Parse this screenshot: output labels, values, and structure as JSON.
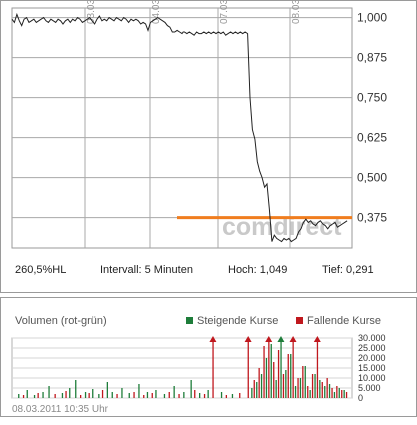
{
  "chart_data": [
    {
      "type": "line",
      "x_ticks": [
        "03.03.",
        "04.03.",
        "07.03.",
        "08.03."
      ],
      "y_ticks": [
        "1,000",
        "0,875",
        "0,750",
        "0,625",
        "0,500",
        "0,375"
      ],
      "ylim": [
        0.28,
        1.03
      ],
      "grid": true,
      "reference_line": {
        "value": 0.375,
        "color": "#f07d1e"
      },
      "watermark": "comdirect",
      "series": [
        {
          "color": "#222222",
          "x": [
            0,
            2,
            4,
            6,
            8,
            10,
            12,
            14,
            16,
            18,
            20,
            22,
            24,
            26,
            28,
            30,
            32,
            34,
            36,
            38,
            40,
            42,
            44,
            46,
            48,
            50,
            52,
            54,
            56,
            58,
            60,
            62,
            64,
            66,
            68,
            70,
            72,
            74,
            76,
            78,
            80,
            82,
            84,
            86,
            88,
            90,
            92,
            94,
            96,
            98,
            100,
            102,
            104,
            106,
            108,
            110,
            112,
            114,
            116,
            118,
            120,
            122,
            124,
            126,
            128,
            130,
            132,
            134,
            136,
            138,
            140,
            141,
            142,
            144,
            146,
            148,
            150,
            152,
            154,
            156,
            158,
            160,
            162,
            164,
            166,
            168,
            170,
            172,
            174,
            176,
            178,
            180,
            182,
            184,
            186,
            188,
            190,
            192,
            194,
            196,
            198,
            200,
            202,
            204,
            206,
            208,
            210,
            212,
            214,
            216,
            218,
            220,
            222,
            224,
            226,
            228,
            230,
            232,
            234,
            236,
            238,
            240,
            242,
            244,
            246,
            248,
            250,
            252,
            254,
            256,
            258,
            260,
            262,
            264,
            266,
            268,
            270,
            272,
            274,
            276
          ],
          "y": [
            0.995,
            0.985,
            1.01,
            0.99,
            0.975,
            0.995,
            1.0,
            0.985,
            0.99,
            0.995,
            0.985,
            0.99,
            0.995,
            1.0,
            0.99,
            0.985,
            0.995,
            0.99,
            0.985,
            0.995,
            0.99,
            0.98,
            0.99,
            0.995,
            0.985,
            0.995,
            0.99,
            1.0,
            0.995,
            0.985,
            0.99,
            0.995,
            1.0,
            0.99,
            0.98,
            0.995,
            1.005,
            0.99,
            0.995,
            0.99,
            1.0,
            0.995,
            0.99,
            1.0,
            0.995,
            0.99,
            1.0,
            0.995,
            0.985,
            0.995,
            0.99,
            0.995,
            0.99,
            0.98,
            0.985,
            0.98,
            0.96,
            0.985,
            0.99,
            0.995,
            1.0,
            0.995,
            0.99,
            0.985,
            0.975,
            0.97,
            0.955,
            0.955,
            0.96,
            0.955,
            0.95,
            0.955,
            0.955,
            0.95,
            0.955,
            0.95,
            0.945,
            0.955,
            0.95,
            0.95,
            0.955,
            0.95,
            0.955,
            0.95,
            0.955,
            0.95,
            0.955,
            0.95,
            0.955,
            0.945,
            0.95,
            0.955,
            0.95,
            0.955,
            0.95,
            0.955,
            0.95,
            0.955,
            0.95,
            0.75,
            0.65,
            0.62,
            0.55,
            0.52,
            0.5,
            0.47,
            0.48,
            0.4,
            0.3,
            0.32,
            0.31,
            0.305,
            0.3,
            0.31,
            0.305,
            0.31,
            0.3,
            0.305,
            0.31,
            0.33,
            0.34,
            0.36,
            0.37,
            0.36,
            0.365,
            0.355,
            0.35,
            0.36,
            0.365,
            0.355,
            0.35,
            0.34,
            0.35,
            0.355,
            0.36,
            0.345,
            0.35,
            0.355,
            0.36,
            0.365
          ]
        }
      ]
    },
    {
      "type": "bar",
      "title": "Volumen (rot-grün)",
      "y_ticks": [
        "30.000",
        "25.000",
        "20.000",
        "15.000",
        "10.000",
        "5.000",
        "0"
      ],
      "ylim": [
        0,
        30000
      ],
      "legend": [
        {
          "label": "Steigende Kurse",
          "color": "#1e7d3a"
        },
        {
          "label": "Fallende Kurse",
          "color": "#c0181e"
        }
      ],
      "series": [
        {
          "name": "Steigende Kurse",
          "x": [
            5,
            12,
            18,
            25,
            30,
            41,
            47,
            52,
            60,
            66,
            71,
            78,
            82,
            90,
            96,
            104,
            111,
            118,
            125,
            133,
            141,
            147,
            154,
            161,
            172,
            181,
            197,
            201,
            205,
            209,
            213,
            217,
            221,
            225,
            229,
            233,
            237,
            241,
            245,
            249,
            253,
            257,
            261,
            265,
            269,
            273
          ],
          "values": [
            2000,
            4000,
            1500,
            3000,
            6000,
            2500,
            5000,
            9000,
            3000,
            4500,
            2000,
            8000,
            3000,
            5000,
            2500,
            7000,
            3000,
            4000,
            2000,
            6000,
            3000,
            9000,
            2500,
            4000,
            3000,
            2000,
            5000,
            8000,
            12000,
            20000,
            27000,
            9000,
            30000,
            14000,
            22000,
            6000,
            10000,
            16000,
            4000,
            12000,
            9000,
            6000,
            7000,
            3000,
            5000,
            4000
          ]
        },
        {
          "name": "Fallende Kurse",
          "x": [
            9,
            21,
            35,
            44,
            56,
            63,
            74,
            86,
            100,
            108,
            115,
            129,
            137,
            150,
            158,
            165,
            176,
            187,
            194,
            199,
            203,
            207,
            211,
            215,
            219,
            223,
            227,
            231,
            235,
            239,
            243,
            247,
            251,
            255,
            259,
            263,
            267,
            271,
            275
          ],
          "values": [
            1500,
            2500,
            2000,
            3500,
            1500,
            2500,
            4000,
            2000,
            3000,
            1500,
            2500,
            3000,
            2000,
            4000,
            2000,
            30000,
            1500,
            2500,
            30000,
            9000,
            15000,
            26000,
            30000,
            18000,
            24000,
            12000,
            22000,
            30000,
            10000,
            16000,
            6000,
            12000,
            30000,
            8000,
            10000,
            5000,
            6000,
            4000,
            3000
          ]
        }
      ]
    }
  ],
  "stats": {
    "hl": "260,5%HL",
    "interval": "Intervall: 5 Minuten",
    "high": "Hoch:  1,049",
    "low": "Tief:  0,291"
  },
  "volume": {
    "title": "Volumen (rot-grün)",
    "legend_up": "Steigende Kurse",
    "legend_down": "Fallende Kurse"
  },
  "timestamp": "08.03.2011 10:35 Uhr"
}
